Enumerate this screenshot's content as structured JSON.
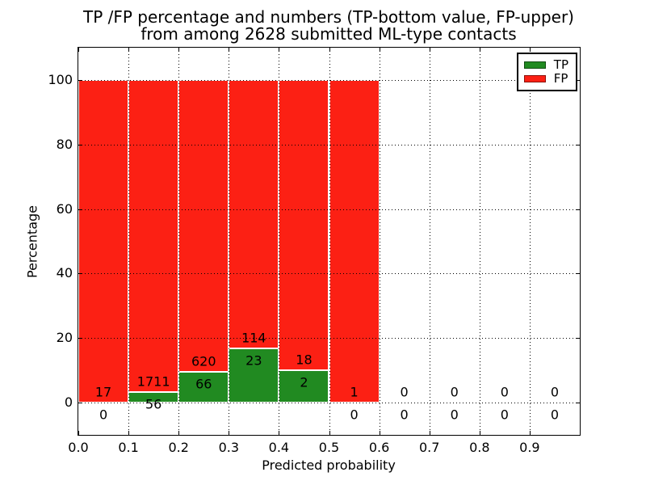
{
  "chart_data": {
    "type": "bar",
    "stacked": true,
    "title_line1": "TP /FP percentage and numbers (TP-bottom value, FP-upper)",
    "title_line2": "from among 2628 submitted ML-type contacts",
    "xlabel": "Predicted probability",
    "ylabel": "Percentage",
    "xlim": [
      0.0,
      1.0
    ],
    "ylim": [
      -10,
      110
    ],
    "grid": true,
    "total_contacts": 2628,
    "xtick_values": [
      0.0,
      0.1,
      0.2,
      0.3,
      0.4,
      0.5,
      0.6,
      0.7,
      0.8,
      0.9
    ],
    "xtick_labels": [
      "0.0",
      "0.1",
      "0.2",
      "0.3",
      "0.4",
      "0.5",
      "0.6",
      "0.7",
      "0.8",
      "0.9"
    ],
    "ytick_values": [
      0,
      20,
      40,
      60,
      80,
      100
    ],
    "ytick_labels": [
      "0",
      "20",
      "40",
      "60",
      "80",
      "100"
    ],
    "colors": {
      "tp": "#218a21",
      "fp": "#fc2014"
    },
    "legend": {
      "position": "upper right",
      "items": [
        {
          "label": "TP",
          "color": "#218a21"
        },
        {
          "label": "FP",
          "color": "#fc2014"
        }
      ]
    },
    "bins": [
      {
        "range": [
          0.0,
          0.1
        ],
        "tp": 0,
        "fp": 17,
        "tp_pct": 0.0,
        "fp_pct": 100.0
      },
      {
        "range": [
          0.1,
          0.2
        ],
        "tp": 56,
        "fp": 1711,
        "tp_pct": 3.17,
        "fp_pct": 96.83
      },
      {
        "range": [
          0.2,
          0.3
        ],
        "tp": 66,
        "fp": 620,
        "tp_pct": 9.62,
        "fp_pct": 90.38
      },
      {
        "range": [
          0.3,
          0.4
        ],
        "tp": 23,
        "fp": 114,
        "tp_pct": 16.79,
        "fp_pct": 83.21
      },
      {
        "range": [
          0.4,
          0.5
        ],
        "tp": 2,
        "fp": 18,
        "tp_pct": 10.0,
        "fp_pct": 90.0
      },
      {
        "range": [
          0.5,
          0.6
        ],
        "tp": 0,
        "fp": 1,
        "tp_pct": 0.0,
        "fp_pct": 100.0
      },
      {
        "range": [
          0.6,
          0.7
        ],
        "tp": 0,
        "fp": 0,
        "tp_pct": 0.0,
        "fp_pct": 0.0
      },
      {
        "range": [
          0.7,
          0.8
        ],
        "tp": 0,
        "fp": 0,
        "tp_pct": 0.0,
        "fp_pct": 0.0
      },
      {
        "range": [
          0.8,
          0.9
        ],
        "tp": 0,
        "fp": 0,
        "tp_pct": 0.0,
        "fp_pct": 0.0
      },
      {
        "range": [
          0.9,
          1.0
        ],
        "tp": 0,
        "fp": 0,
        "tp_pct": 0.0,
        "fp_pct": 0.0
      }
    ]
  }
}
